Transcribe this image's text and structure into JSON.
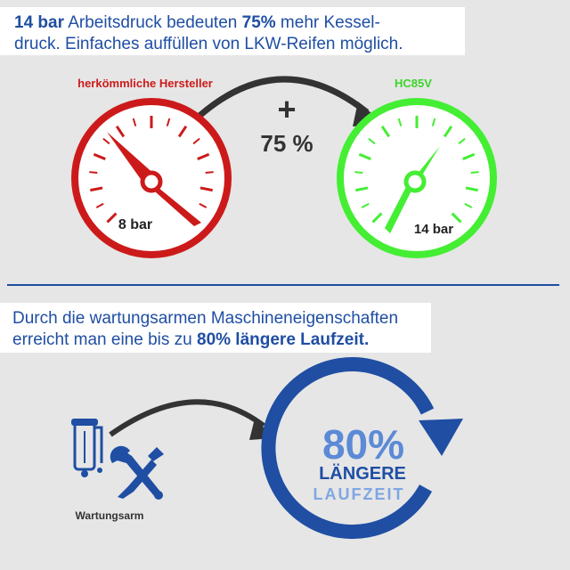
{
  "header": {
    "line1_bold_a": "14 bar",
    "line1_text_a": " Arbeitsdruck bedeuten ",
    "line1_bold_b": "75%",
    "line1_text_b": " mehr Kessel-",
    "line2": "druck. Einfaches auffüllen von LKW-Reifen möglich."
  },
  "gauges": {
    "left_title": "herkömmliche Hersteller",
    "left_value": "8 bar",
    "left_color": "#cc1a1a",
    "right_title": "HC85V",
    "right_value": "14 bar",
    "right_color": "#44ee33",
    "plus": "+",
    "increase": "75 %"
  },
  "middle": {
    "line1": "Durch die wartungsarmen Maschineneigenschaften",
    "line2_text": "erreicht man eine bis zu ",
    "line2_bold": "80% längere Laufzeit."
  },
  "bottom": {
    "maintenance_label": "Wartungsarm",
    "percent": "80%",
    "word1": "LÄNGERE",
    "word2": "LAUFZEIT"
  },
  "colors": {
    "brand_blue": "#1f4ea3",
    "light_blue": "#5b8ad6",
    "dark": "#333333"
  }
}
